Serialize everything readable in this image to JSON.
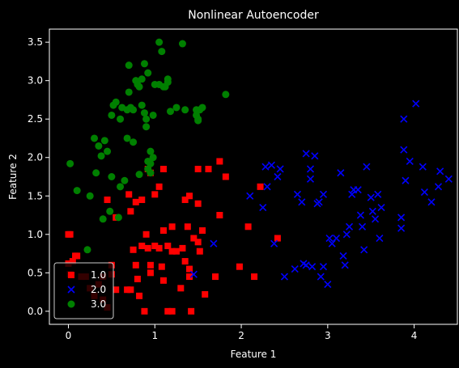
{
  "chart_data": {
    "type": "scatter",
    "title": "Nonlinear Autoencoder",
    "xlabel": "Feature 1",
    "ylabel": "Feature 2",
    "xlim": [
      -0.22,
      4.5
    ],
    "ylim": [
      -0.17,
      3.67
    ],
    "xticks": [
      0,
      1,
      2,
      3,
      4
    ],
    "yticks": [
      0.0,
      0.5,
      1.0,
      1.5,
      2.0,
      2.5,
      3.0,
      3.5
    ],
    "xtick_labels": [
      "0",
      "1",
      "2",
      "3",
      "4"
    ],
    "ytick_labels": [
      "0.0",
      "0.5",
      "1.0",
      "1.5",
      "2.0",
      "2.5",
      "3.0",
      "3.5"
    ],
    "legend_position": "bottom-left",
    "colors": {
      "background": "#000000",
      "axes": "#ffffff"
    },
    "series": [
      {
        "name": "1.0",
        "marker": "square",
        "color": "#ff0000",
        "points": [
          [
            0.0,
            1.0
          ],
          [
            0.02,
            1.0
          ],
          [
            0.08,
            0.72
          ],
          [
            0.1,
            0.72
          ],
          [
            0.05,
            0.65
          ],
          [
            0.0,
            0.62
          ],
          [
            0.02,
            0.48
          ],
          [
            0.15,
            0.45
          ],
          [
            0.2,
            0.45
          ],
          [
            0.25,
            0.3
          ],
          [
            0.35,
            0.35
          ],
          [
            0.4,
            0.15
          ],
          [
            0.45,
            0.05
          ],
          [
            0.3,
            0.2
          ],
          [
            0.4,
            0.45
          ],
          [
            0.5,
            0.48
          ],
          [
            0.5,
            0.6
          ],
          [
            0.55,
            0.28
          ],
          [
            0.68,
            0.28
          ],
          [
            0.72,
            0.28
          ],
          [
            0.75,
            0.8
          ],
          [
            0.78,
            0.6
          ],
          [
            0.8,
            0.42
          ],
          [
            0.82,
            0.2
          ],
          [
            0.88,
            0.0
          ],
          [
            0.9,
            1.0
          ],
          [
            0.85,
            0.85
          ],
          [
            0.92,
            0.82
          ],
          [
            0.95,
            0.6
          ],
          [
            0.95,
            0.5
          ],
          [
            1.0,
            0.85
          ],
          [
            1.05,
            0.82
          ],
          [
            1.08,
            0.58
          ],
          [
            1.1,
            0.4
          ],
          [
            1.15,
            0.0
          ],
          [
            1.2,
            0.0
          ],
          [
            1.15,
            0.85
          ],
          [
            1.2,
            0.78
          ],
          [
            1.25,
            0.78
          ],
          [
            1.3,
            0.3
          ],
          [
            1.32,
            0.82
          ],
          [
            1.35,
            0.65
          ],
          [
            1.4,
            0.55
          ],
          [
            1.4,
            0.45
          ],
          [
            1.42,
            0.0
          ],
          [
            1.45,
            0.95
          ],
          [
            1.5,
            0.9
          ],
          [
            1.52,
            0.78
          ],
          [
            1.55,
            1.05
          ],
          [
            1.5,
            1.85
          ],
          [
            1.58,
            0.22
          ],
          [
            1.62,
            1.85
          ],
          [
            1.7,
            0.45
          ],
          [
            1.75,
            1.25
          ],
          [
            1.82,
            1.75
          ],
          [
            1.75,
            1.95
          ],
          [
            1.5,
            1.4
          ],
          [
            1.35,
            1.45
          ],
          [
            1.2,
            1.1
          ],
          [
            1.1,
            1.05
          ],
          [
            1.0,
            1.52
          ],
          [
            1.05,
            1.62
          ],
          [
            1.1,
            1.85
          ],
          [
            0.92,
            1.85
          ],
          [
            0.95,
            1.8
          ],
          [
            0.85,
            1.45
          ],
          [
            0.78,
            1.42
          ],
          [
            0.7,
            1.52
          ],
          [
            0.72,
            1.3
          ],
          [
            0.55,
            1.22
          ],
          [
            0.45,
            1.45
          ],
          [
            1.98,
            0.58
          ],
          [
            2.08,
            1.1
          ],
          [
            2.15,
            0.45
          ],
          [
            2.22,
            1.62
          ],
          [
            2.42,
            0.95
          ],
          [
            1.38,
            1.1
          ],
          [
            1.4,
            1.5
          ]
        ]
      },
      {
        "name": "2.0",
        "marker": "x",
        "color": "#0000ff",
        "points": [
          [
            1.68,
            0.88
          ],
          [
            1.45,
            0.48
          ],
          [
            2.1,
            1.5
          ],
          [
            2.25,
            1.35
          ],
          [
            2.28,
            1.88
          ],
          [
            2.3,
            1.62
          ],
          [
            2.35,
            1.9
          ],
          [
            2.38,
            0.88
          ],
          [
            2.42,
            1.75
          ],
          [
            2.45,
            1.85
          ],
          [
            2.5,
            0.45
          ],
          [
            2.62,
            0.55
          ],
          [
            2.65,
            1.52
          ],
          [
            2.7,
            1.42
          ],
          [
            2.72,
            0.62
          ],
          [
            2.75,
            2.05
          ],
          [
            2.8,
            1.72
          ],
          [
            2.85,
            2.02
          ],
          [
            2.88,
            1.4
          ],
          [
            2.9,
            1.42
          ],
          [
            2.92,
            0.45
          ],
          [
            2.95,
            0.58
          ],
          [
            3.0,
            0.35
          ],
          [
            3.02,
            0.95
          ],
          [
            3.05,
            0.88
          ],
          [
            3.1,
            0.95
          ],
          [
            3.15,
            1.8
          ],
          [
            3.18,
            0.72
          ],
          [
            3.2,
            0.6
          ],
          [
            3.22,
            1.0
          ],
          [
            3.25,
            1.1
          ],
          [
            3.28,
            1.52
          ],
          [
            3.3,
            1.58
          ],
          [
            3.35,
            1.58
          ],
          [
            3.38,
            1.25
          ],
          [
            3.4,
            1.1
          ],
          [
            3.42,
            0.8
          ],
          [
            3.45,
            1.88
          ],
          [
            3.5,
            1.48
          ],
          [
            3.52,
            1.3
          ],
          [
            3.55,
            1.2
          ],
          [
            3.58,
            1.52
          ],
          [
            3.6,
            0.95
          ],
          [
            3.62,
            1.35
          ],
          [
            3.85,
            1.22
          ],
          [
            3.88,
            2.1
          ],
          [
            3.9,
            1.7
          ],
          [
            3.95,
            1.95
          ],
          [
            4.02,
            2.7
          ],
          [
            4.1,
            1.88
          ],
          [
            4.12,
            1.55
          ],
          [
            4.2,
            1.42
          ],
          [
            4.28,
            1.62
          ],
          [
            4.3,
            1.82
          ],
          [
            4.4,
            1.72
          ],
          [
            3.88,
            2.5
          ],
          [
            2.82,
            0.58
          ],
          [
            2.75,
            0.6
          ],
          [
            3.85,
            1.08
          ],
          [
            2.8,
            1.85
          ],
          [
            2.95,
            1.52
          ]
        ]
      },
      {
        "name": "3.0",
        "marker": "circle",
        "color": "#008000",
        "points": [
          [
            0.02,
            1.92
          ],
          [
            0.1,
            1.57
          ],
          [
            0.22,
            0.8
          ],
          [
            0.25,
            1.5
          ],
          [
            0.3,
            2.25
          ],
          [
            0.32,
            1.8
          ],
          [
            0.35,
            2.15
          ],
          [
            0.38,
            2.02
          ],
          [
            0.4,
            1.2
          ],
          [
            0.42,
            2.22
          ],
          [
            0.45,
            2.08
          ],
          [
            0.48,
            1.3
          ],
          [
            0.5,
            1.75
          ],
          [
            0.5,
            2.55
          ],
          [
            0.52,
            2.68
          ],
          [
            0.55,
            2.72
          ],
          [
            0.58,
            1.22
          ],
          [
            0.6,
            1.62
          ],
          [
            0.6,
            2.5
          ],
          [
            0.62,
            2.65
          ],
          [
            0.65,
            1.7
          ],
          [
            0.68,
            2.25
          ],
          [
            0.68,
            2.62
          ],
          [
            0.7,
            2.85
          ],
          [
            0.72,
            2.65
          ],
          [
            0.75,
            2.62
          ],
          [
            0.75,
            2.2
          ],
          [
            0.78,
            3.0
          ],
          [
            0.8,
            2.95
          ],
          [
            0.82,
            1.78
          ],
          [
            0.82,
            2.92
          ],
          [
            0.85,
            3.02
          ],
          [
            0.85,
            2.68
          ],
          [
            0.88,
            3.22
          ],
          [
            0.88,
            2.58
          ],
          [
            0.9,
            2.5
          ],
          [
            0.92,
            3.1
          ],
          [
            0.92,
            1.95
          ],
          [
            0.95,
            2.08
          ],
          [
            0.95,
            1.8
          ],
          [
            0.98,
            2.0
          ],
          [
            0.98,
            2.55
          ],
          [
            1.0,
            2.95
          ],
          [
            1.05,
            2.95
          ],
          [
            1.05,
            3.5
          ],
          [
            1.08,
            3.38
          ],
          [
            1.1,
            2.92
          ],
          [
            1.12,
            2.92
          ],
          [
            1.15,
            2.98
          ],
          [
            1.15,
            3.02
          ],
          [
            1.18,
            2.6
          ],
          [
            1.25,
            2.65
          ],
          [
            1.32,
            3.48
          ],
          [
            1.35,
            2.62
          ],
          [
            1.48,
            2.62
          ],
          [
            1.48,
            2.55
          ],
          [
            1.5,
            2.48
          ],
          [
            1.5,
            2.5
          ],
          [
            1.52,
            2.62
          ],
          [
            1.55,
            2.65
          ],
          [
            1.82,
            2.82
          ],
          [
            0.95,
            1.92
          ],
          [
            0.9,
            2.4
          ],
          [
            0.7,
            3.2
          ],
          [
            0.92,
            1.85
          ]
        ]
      }
    ]
  }
}
